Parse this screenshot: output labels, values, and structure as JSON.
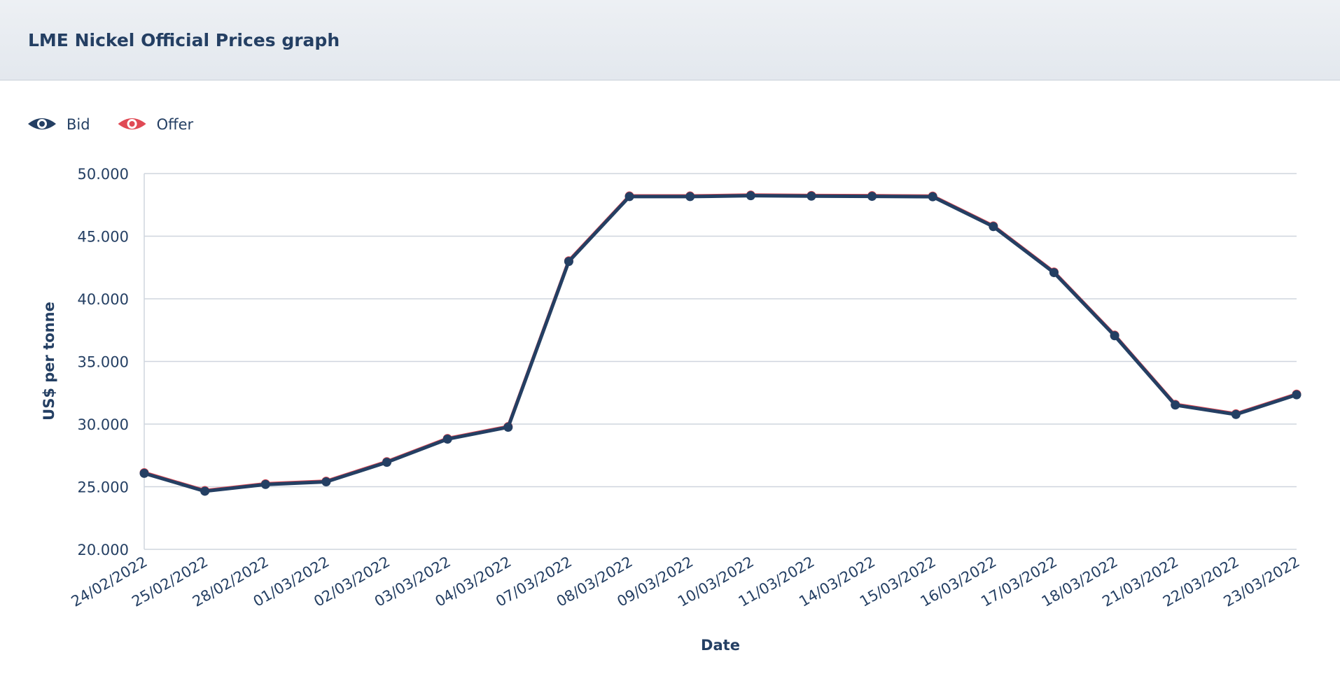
{
  "header": {
    "title": "LME Nickel Official Prices graph"
  },
  "chart_data": {
    "type": "line",
    "x_label": "Date",
    "y_label": "US$ per tonne",
    "categories": [
      "24/02/2022",
      "25/02/2022",
      "28/02/2022",
      "01/03/2022",
      "02/03/2022",
      "03/03/2022",
      "04/03/2022",
      "07/03/2022",
      "08/03/2022",
      "09/03/2022",
      "10/03/2022",
      "11/03/2022",
      "14/03/2022",
      "15/03/2022",
      "16/03/2022",
      "17/03/2022",
      "18/03/2022",
      "21/03/2022",
      "22/03/2022",
      "23/03/2022"
    ],
    "series": [
      {
        "name": "Bid",
        "color": "#243f63",
        "values": [
          26070,
          24640,
          25180,
          25390,
          26950,
          28800,
          29750,
          42980,
          48160,
          48160,
          48230,
          48200,
          48180,
          48150,
          45770,
          42090,
          37050,
          31520,
          30770,
          32340
        ]
      },
      {
        "name": "Offer",
        "color": "#e04a55",
        "values": [
          26120,
          24690,
          25230,
          25440,
          27000,
          28850,
          29800,
          43030,
          48210,
          48210,
          48280,
          48250,
          48230,
          48200,
          45820,
          42140,
          37100,
          31570,
          30820,
          32390
        ]
      }
    ],
    "ylim": [
      20000,
      50000
    ],
    "yticks": [
      {
        "value": 20000,
        "label": "20.000"
      },
      {
        "value": 25000,
        "label": "25.000"
      },
      {
        "value": 30000,
        "label": "30.000"
      },
      {
        "value": 35000,
        "label": "35.000"
      },
      {
        "value": 40000,
        "label": "40.000"
      },
      {
        "value": 45000,
        "label": "45.000"
      },
      {
        "value": 50000,
        "label": "50.000"
      }
    ],
    "grid": true
  }
}
